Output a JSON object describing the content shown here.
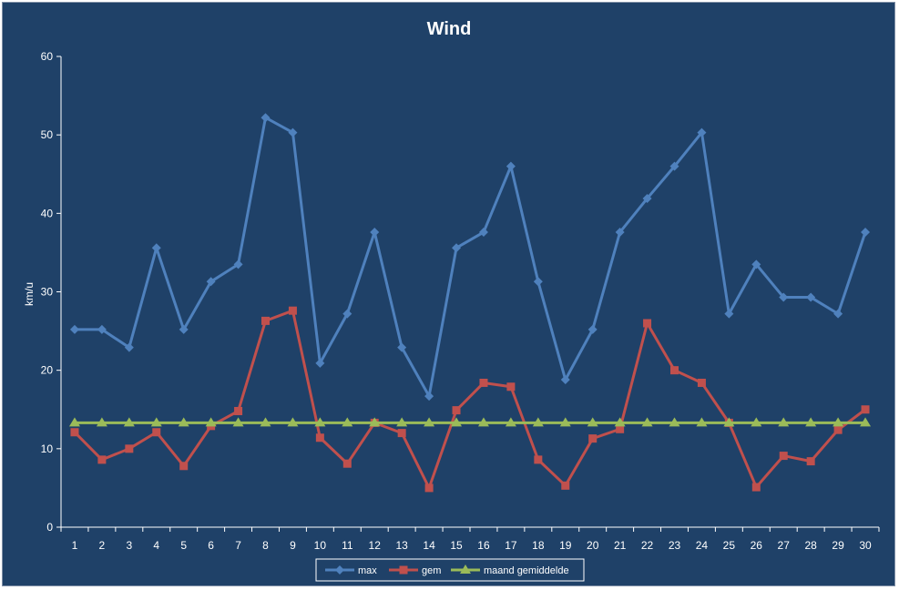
{
  "chart_data": {
    "type": "line",
    "title": "Wind",
    "xlabel": "",
    "ylabel": "km/u",
    "ylim": [
      0,
      60
    ],
    "yticks": [
      0,
      10,
      20,
      30,
      40,
      50,
      60
    ],
    "grid": false,
    "legend_position": "bottom",
    "categories": [
      "1",
      "2",
      "3",
      "4",
      "5",
      "6",
      "7",
      "8",
      "9",
      "10",
      "11",
      "12",
      "13",
      "14",
      "15",
      "16",
      "17",
      "18",
      "19",
      "20",
      "21",
      "22",
      "23",
      "24",
      "25",
      "26",
      "27",
      "28",
      "29",
      "30"
    ],
    "series": [
      {
        "name": "max",
        "color": "#4f81bd",
        "marker": "diamond",
        "values": [
          25.2,
          25.2,
          22.9,
          35.6,
          25.2,
          31.3,
          33.5,
          52.2,
          50.3,
          20.9,
          27.2,
          37.6,
          22.9,
          16.7,
          35.6,
          37.6,
          46.0,
          31.3,
          18.8,
          25.2,
          37.6,
          41.9,
          46.0,
          50.3,
          27.2,
          33.5,
          29.3,
          29.3,
          27.2,
          37.6
        ]
      },
      {
        "name": "gem",
        "color": "#c0504d",
        "marker": "square",
        "values": [
          12.1,
          8.6,
          10.0,
          12.1,
          7.8,
          12.9,
          14.8,
          26.3,
          27.6,
          11.4,
          8.1,
          13.3,
          12.0,
          5.0,
          14.9,
          18.4,
          17.9,
          8.6,
          5.3,
          11.3,
          12.5,
          26.0,
          20.0,
          18.4,
          13.3,
          5.1,
          9.1,
          8.4,
          12.4,
          15.0
        ]
      },
      {
        "name": "maand gemiddelde",
        "color": "#9bbb59",
        "marker": "triangle",
        "values": [
          13.3,
          13.3,
          13.3,
          13.3,
          13.3,
          13.3,
          13.3,
          13.3,
          13.3,
          13.3,
          13.3,
          13.3,
          13.3,
          13.3,
          13.3,
          13.3,
          13.3,
          13.3,
          13.3,
          13.3,
          13.3,
          13.3,
          13.3,
          13.3,
          13.3,
          13.3,
          13.3,
          13.3,
          13.3,
          13.3
        ]
      }
    ]
  },
  "colors": {
    "background": "#1f4168",
    "axis": "#ffffff",
    "legend_border": "#ffffff"
  }
}
